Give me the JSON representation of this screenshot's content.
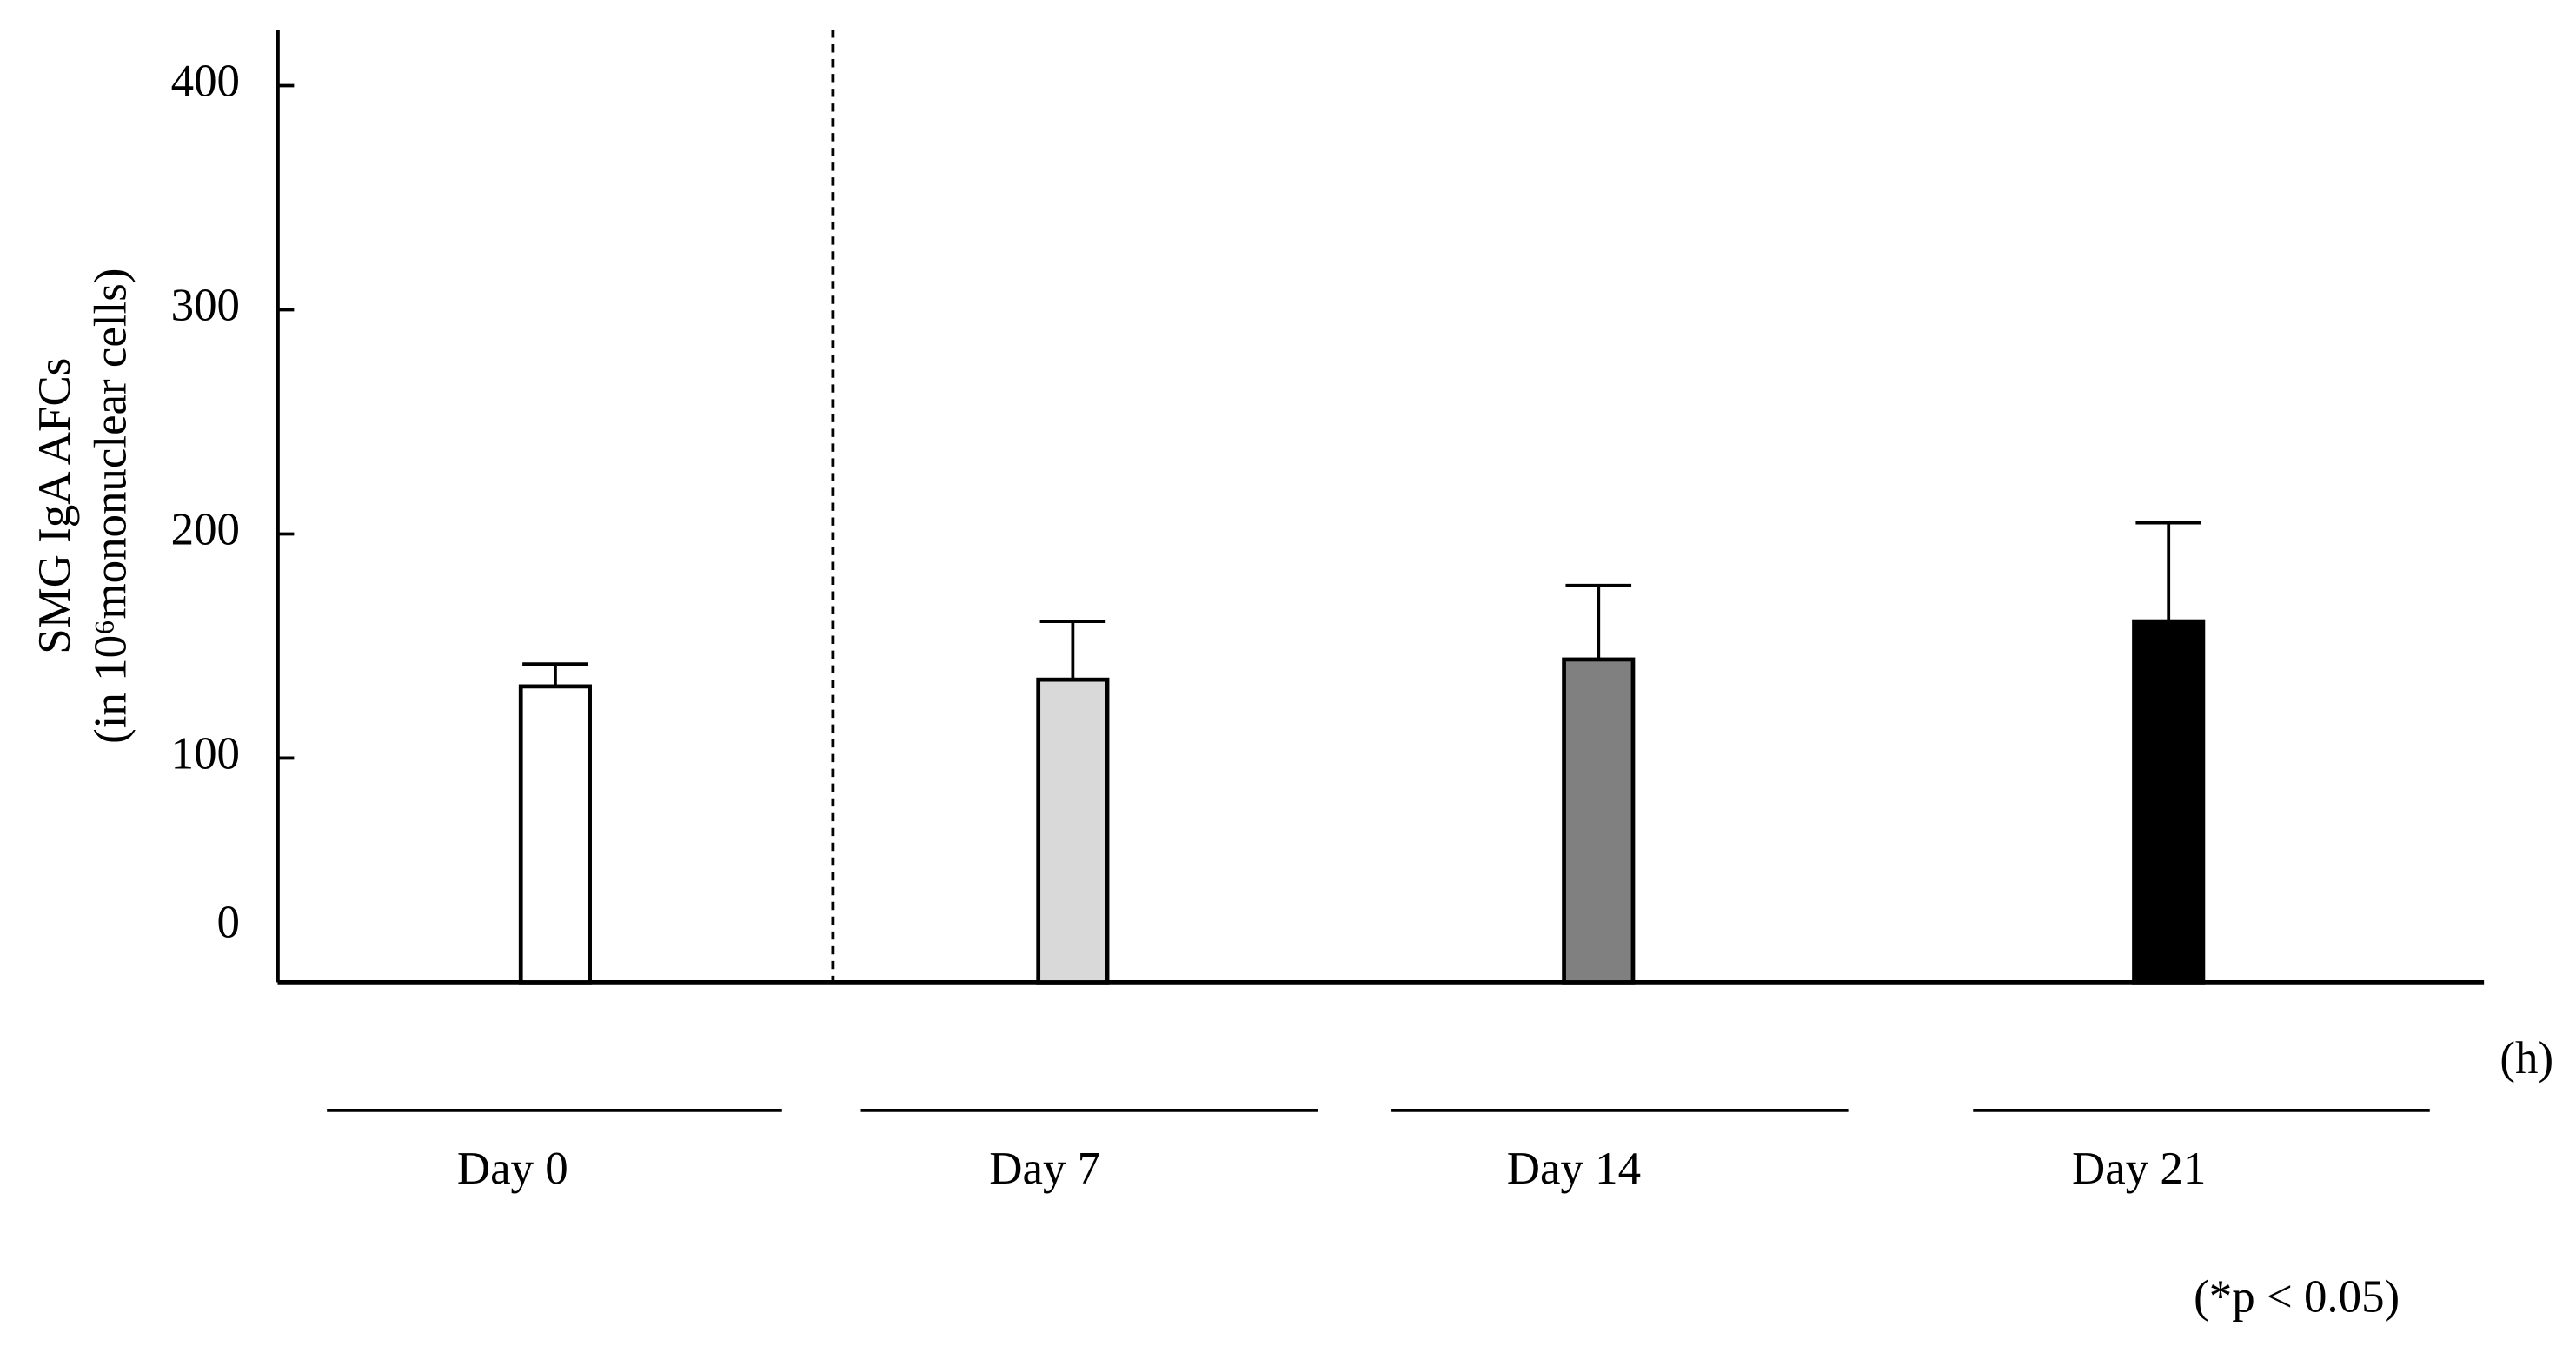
{
  "chart_data": {
    "type": "bar",
    "y_label": [
      "SMG IgA AFCs",
      "(in 10⁶mononuclear cells)"
    ],
    "x_label": "(h)",
    "note": "(*p < 0.05)",
    "categories": [
      "Day 0",
      "Day 7",
      "Day 14",
      "Day 21"
    ],
    "values": [
      132,
      135,
      144,
      161
    ],
    "errors": [
      10,
      26,
      33,
      44
    ],
    "colors": [
      "#ffffff",
      "#d9d9d9",
      "#808080",
      "#000000"
    ],
    "ylim": [
      0,
      425
    ],
    "yticks": [
      0,
      100,
      200,
      300,
      400
    ]
  }
}
